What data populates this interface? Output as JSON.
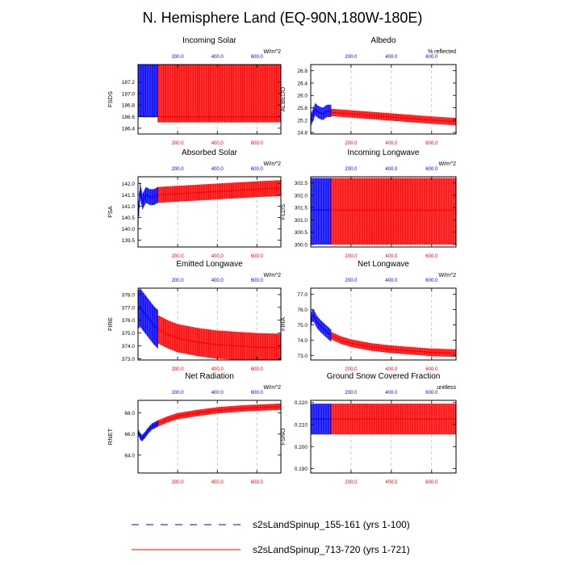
{
  "title": "N. Hemisphere Land (EQ-90N,180W-180E)",
  "colors": {
    "series1": "#0000ff",
    "series2": "#ff0000",
    "axis": "#000000",
    "grid": "#aaaaaa"
  },
  "legend": {
    "items": [
      {
        "label": "s2sLandSpinup_155-161 (yrs 1-100)",
        "style": "dashed",
        "color": "#0000ff"
      },
      {
        "label": "s2sLandSpinup_713-720 (yrs 1-721)",
        "style": "solid",
        "color": "#ff0000"
      }
    ]
  },
  "chart_data": [
    {
      "type": "line",
      "title": "Incoming Solar",
      "ylabel": "FSDS",
      "units": "W/m^2",
      "xlim": [
        0,
        721
      ],
      "ylim": [
        186.3,
        187.5
      ],
      "yticks": [
        186.4,
        186.6,
        186.8,
        187.0,
        187.2
      ],
      "ytick_labels": [
        "186.4",
        "186.6",
        "186.8",
        "187.0",
        "187.2"
      ],
      "xticks": [
        200,
        400,
        600
      ],
      "xtick_labels": [
        "200.0",
        "400.0",
        "600.0"
      ],
      "series": [
        {
          "name": "s2sLandSpinup_155-161 (yrs 1-100)",
          "years": [
            1,
            100
          ],
          "mean": [
            186.6,
            186.6
          ],
          "seasonal_low": 186.6,
          "seasonal_high": 187.5
        },
        {
          "name": "s2sLandSpinup_713-720 (yrs 1-721)",
          "years": [
            1,
            721
          ],
          "mean": [
            186.6,
            186.6
          ],
          "seasonal_low": 186.5,
          "seasonal_high": 187.5
        }
      ]
    },
    {
      "type": "line",
      "title": "Albedo",
      "ylabel": "ALBEDO",
      "units": "% reflected",
      "xlim": [
        0,
        721
      ],
      "ylim": [
        24.75,
        27.0
      ],
      "yticks": [
        24.8,
        25.2,
        25.6,
        26.0,
        26.4,
        26.8
      ],
      "ytick_labels": [
        "24.8",
        "25.2",
        "25.6",
        "26.0",
        "26.4",
        "26.8"
      ],
      "xticks": [
        200,
        400,
        600
      ],
      "xtick_labels": [
        "200.0",
        "400.0",
        "600.0"
      ],
      "series": [
        {
          "name": "s2sLandSpinup_155-161 (yrs 1-100)",
          "years": [
            1,
            10,
            22,
            40,
            60,
            80,
            100
          ],
          "mean": [
            25.2,
            25.35,
            25.55,
            25.45,
            25.4,
            25.5,
            25.5
          ],
          "seasonal_low": -0.2,
          "seasonal_high": 0.2
        },
        {
          "name": "s2sLandSpinup_713-720 (yrs 1-721)",
          "years": [
            100,
            200,
            300,
            400,
            500,
            600,
            721
          ],
          "mean": [
            25.45,
            25.4,
            25.35,
            25.3,
            25.25,
            25.2,
            25.15
          ],
          "seasonal_low": -0.12,
          "seasonal_high": 0.12
        }
      ]
    },
    {
      "type": "line",
      "title": "Absorbed Solar",
      "ylabel": "FSA",
      "units": "W/m^2",
      "xlim": [
        0,
        721
      ],
      "ylim": [
        139.2,
        142.3
      ],
      "yticks": [
        139.5,
        140.0,
        140.5,
        141.0,
        141.5,
        142.0
      ],
      "ytick_labels": [
        "139.5",
        "140.0",
        "140.5",
        "141.0",
        "141.5",
        "142.0"
      ],
      "xticks": [
        200,
        400,
        600
      ],
      "xtick_labels": [
        "200.0",
        "400.0",
        "600.0"
      ],
      "series": [
        {
          "name": "s2sLandSpinup_155-161 (yrs 1-100)",
          "years": [
            1,
            10,
            22,
            40,
            60,
            80,
            100
          ],
          "mean": [
            140.5,
            141.7,
            141.2,
            141.5,
            141.4,
            141.4,
            141.5
          ],
          "seasonal_low": -0.35,
          "seasonal_high": 0.35
        },
        {
          "name": "s2sLandSpinup_713-720 (yrs 1-721)",
          "years": [
            100,
            200,
            300,
            400,
            500,
            600,
            721
          ],
          "mean": [
            141.5,
            141.55,
            141.6,
            141.65,
            141.7,
            141.75,
            141.8
          ],
          "seasonal_low": -0.35,
          "seasonal_high": 0.35
        }
      ]
    },
    {
      "type": "line",
      "title": "Incoming Longwave",
      "ylabel": "FLDS",
      "units": "W/m^2",
      "xlim": [
        0,
        721
      ],
      "ylim": [
        299.9,
        302.75
      ],
      "yticks": [
        300.0,
        300.5,
        301.0,
        301.5,
        302.0,
        302.5
      ],
      "ytick_labels": [
        "300.0",
        "300.5",
        "301.0",
        "301.5",
        "302.0",
        "302.5"
      ],
      "xticks": [
        200,
        400,
        600
      ],
      "xtick_labels": [
        "200.0",
        "400.0",
        "600.0"
      ],
      "series": [
        {
          "name": "s2sLandSpinup_155-161 (yrs 1-100)",
          "years": [
            1,
            100
          ],
          "mean": [
            301.4,
            301.4
          ],
          "seasonal_low": 300.0,
          "seasonal_high": 302.7
        },
        {
          "name": "s2sLandSpinup_713-720 (yrs 1-721)",
          "years": [
            1,
            721
          ],
          "mean": [
            301.4,
            301.4
          ],
          "seasonal_low": 300.0,
          "seasonal_high": 302.7
        }
      ]
    },
    {
      "type": "line",
      "title": "Emitted Longwave",
      "ylabel": "FIRE",
      "units": "W/m^2",
      "xlim": [
        0,
        721
      ],
      "ylim": [
        372.9,
        378.5
      ],
      "yticks": [
        373.0,
        374.0,
        375.0,
        376.0,
        377.0,
        378.0
      ],
      "ytick_labels": [
        "373.0",
        "374.0",
        "375.0",
        "376.0",
        "377.0",
        "378.0"
      ],
      "xticks": [
        200,
        400,
        600
      ],
      "xtick_labels": [
        "200.0",
        "400.0",
        "600.0"
      ],
      "series": [
        {
          "name": "s2sLandSpinup_155-161 (yrs 1-100)",
          "years": [
            1,
            10,
            20,
            40,
            60,
            80,
            100
          ],
          "mean": [
            376.8,
            377.0,
            376.8,
            376.4,
            376.0,
            375.6,
            375.3
          ],
          "seasonal_low": -1.5,
          "seasonal_high": 1.5
        },
        {
          "name": "s2sLandSpinup_713-720 (yrs 1-721)",
          "years": [
            100,
            150,
            200,
            300,
            400,
            500,
            600,
            721
          ],
          "mean": [
            375.3,
            374.9,
            374.6,
            374.3,
            374.1,
            374.0,
            373.9,
            373.85
          ],
          "seasonal_low": -1.1,
          "seasonal_high": 1.1
        }
      ]
    },
    {
      "type": "line",
      "title": "Net Longwave",
      "ylabel": "FIRA",
      "units": "W/m^2",
      "xlim": [
        0,
        721
      ],
      "ylim": [
        72.7,
        77.4
      ],
      "yticks": [
        73.0,
        74.0,
        75.0,
        76.0,
        77.0
      ],
      "ytick_labels": [
        "73.0",
        "74.0",
        "75.0",
        "76.0",
        "77.0"
      ],
      "xticks": [
        200,
        400,
        600
      ],
      "xtick_labels": [
        "200.0",
        "400.0",
        "600.0"
      ],
      "series": [
        {
          "name": "s2sLandSpinup_155-161 (yrs 1-100)",
          "years": [
            1,
            5,
            15,
            30,
            50,
            75,
            100
          ],
          "mean": [
            75.0,
            75.6,
            75.6,
            75.2,
            74.9,
            74.6,
            74.3
          ],
          "seasonal_low": -0.4,
          "seasonal_high": 0.4
        },
        {
          "name": "s2sLandSpinup_713-720 (yrs 1-721)",
          "years": [
            100,
            150,
            200,
            300,
            400,
            500,
            600,
            721
          ],
          "mean": [
            74.3,
            74.0,
            73.8,
            73.55,
            73.4,
            73.3,
            73.2,
            73.15
          ],
          "seasonal_low": -0.25,
          "seasonal_high": 0.25
        }
      ]
    },
    {
      "type": "line",
      "title": "Net Radiation",
      "ylabel": "RNET",
      "units": "W/m^2",
      "xlim": [
        0,
        721
      ],
      "ylim": [
        62.3,
        69.2
      ],
      "yticks": [
        64.0,
        66.0,
        68.0
      ],
      "ytick_labels": [
        "64.0",
        "66.0",
        "68.0"
      ],
      "xticks": [
        200,
        400,
        600
      ],
      "xtick_labels": [
        "200.0",
        "400.0",
        "600.0"
      ],
      "series": [
        {
          "name": "s2sLandSpinup_155-161 (yrs 1-100)",
          "years": [
            1,
            10,
            20,
            35,
            50,
            70,
            100
          ],
          "mean": [
            66.2,
            65.8,
            65.6,
            65.9,
            66.3,
            66.7,
            67.0
          ],
          "seasonal_low": -0.3,
          "seasonal_high": 0.3
        },
        {
          "name": "s2sLandSpinup_713-720 (yrs 1-721)",
          "years": [
            100,
            150,
            200,
            300,
            400,
            500,
            600,
            721
          ],
          "mean": [
            67.0,
            67.4,
            67.7,
            68.0,
            68.25,
            68.4,
            68.5,
            68.6
          ],
          "seasonal_low": -0.3,
          "seasonal_high": 0.3
        }
      ]
    },
    {
      "type": "line",
      "title": "Ground Snow Covered Fraction",
      "ylabel": "FSNO",
      "units": "unitless",
      "xlim": [
        0,
        721
      ],
      "ylim": [
        0.188,
        0.221
      ],
      "yticks": [
        0.19,
        0.2,
        0.21,
        0.22
      ],
      "ytick_labels": [
        "0.190",
        "0.200",
        "0.210",
        "0.220"
      ],
      "xticks": [
        200,
        400,
        600
      ],
      "xtick_labels": [
        "200.0",
        "400.0",
        "600.0"
      ],
      "series": [
        {
          "name": "s2sLandSpinup_155-161 (yrs 1-100)",
          "years": [
            1,
            100
          ],
          "mean": [
            0.2125,
            0.2125
          ],
          "seasonal_low": 0.2055,
          "seasonal_high": 0.2195
        },
        {
          "name": "s2sLandSpinup_713-720 (yrs 1-721)",
          "years": [
            1,
            721
          ],
          "mean": [
            0.2125,
            0.2125
          ],
          "seasonal_low": 0.2055,
          "seasonal_high": 0.2195
        }
      ]
    }
  ]
}
